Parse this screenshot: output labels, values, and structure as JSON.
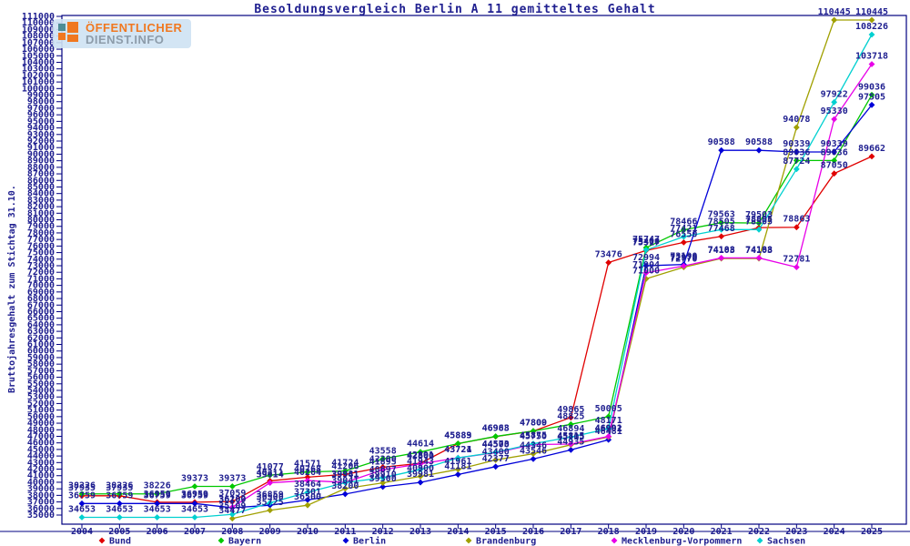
{
  "title": "Besoldungsvergleich Berlin A 11 gemitteltes Gehalt",
  "logo": {
    "line1": "ÖFFENTLICHER",
    "line2": "DIENST.INFO"
  },
  "colors": {
    "axis": "#000080",
    "text": "#202090",
    "background": "#ffffff",
    "logo_orange": "#f07820",
    "logo_gray": "#8d9caa"
  },
  "chart_data": {
    "type": "line",
    "title": "Besoldungsvergleich Berlin A 11 gemitteltes Gehalt",
    "xlabel": "",
    "ylabel": "Bruttojahresgehalt zum Stichtag 31.10.",
    "ylim": [
      35000,
      111000
    ],
    "ytick_step": 1000,
    "grid": false,
    "legend_position": "bottom",
    "point_labels": true,
    "marker": "diamond",
    "x": [
      2004,
      2005,
      2006,
      2007,
      2008,
      2009,
      2010,
      2011,
      2012,
      2013,
      2014,
      2015,
      2016,
      2017,
      2018,
      2019,
      2020,
      2021,
      2022,
      2023,
      2024,
      2025
    ],
    "series": [
      {
        "name": "Bund",
        "color": "#e00000",
        "values": [
          37935,
          37935,
          36959,
          36959,
          37059,
          40211,
          40768,
          41206,
          42300,
          42891,
          45883,
          46963,
          47800,
          49865,
          73476,
          75317,
          76550,
          77468,
          78805,
          78863,
          87050,
          89662
        ]
      },
      {
        "name": "Bayern",
        "color": "#00c800",
        "values": [
          38226,
          38226,
          38226,
          39373,
          39373,
          41077,
          41571,
          41724,
          43558,
          44614,
          45889,
          46988,
          47809,
          48825,
          50005,
          75747,
          78466,
          79563,
          79503,
          89036,
          89036,
          99036
        ]
      },
      {
        "name": "Berlin",
        "color": "#0000d8",
        "values": [
          36759,
          36759,
          36759,
          36759,
          36109,
          36500,
          37301,
          38200,
          39300,
          39981,
          41181,
          42377,
          43546,
          44935,
          46481,
          72994,
          73190,
          90588,
          90588,
          90339,
          90339,
          97505
        ]
      },
      {
        "name": "Brandenburg",
        "color": "#a0a000",
        "values": [
          null,
          null,
          null,
          null,
          34477,
          35725,
          36500,
          39041,
          39910,
          40900,
          41961,
          43400,
          44346,
          45705,
          46902,
          71000,
          72770,
          74103,
          74103,
          94078,
          110445,
          110445
        ]
      },
      {
        "name": "Mecklenburg-Vorpommern",
        "color": "#e800e8",
        "values": [
          null,
          null,
          null,
          null,
          36200,
          39914,
          40264,
          39981,
          41895,
          42800,
          43724,
          44500,
          45750,
          45815,
          46991,
          71904,
          72970,
          74188,
          74188,
          72781,
          95330,
          103718
        ]
      },
      {
        "name": "Sachsen",
        "color": "#00d0d0",
        "values": [
          34653,
          34653,
          34653,
          34653,
          35109,
          36859,
          38464,
          39941,
          40697,
          41943,
          43721,
          44573,
          45875,
          46894,
          48171,
          75400,
          77421,
          78505,
          78505,
          87724,
          97922,
          108226
        ]
      }
    ]
  }
}
